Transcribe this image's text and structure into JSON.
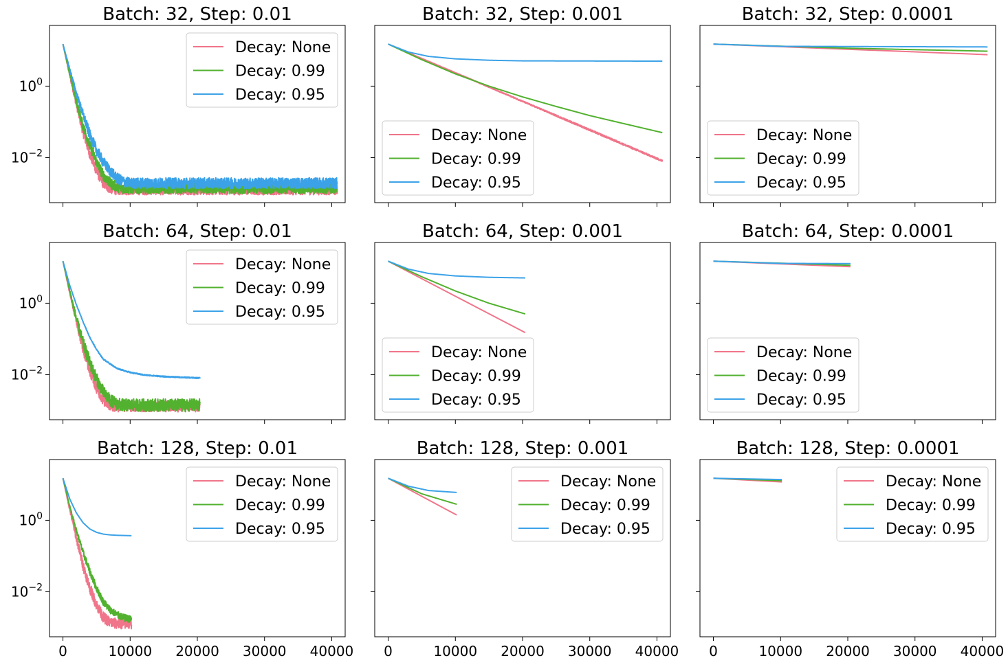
{
  "chart_data": {
    "type": "line",
    "layout": "3x3 grid, shared x-axis per column, shared y-axis per row",
    "yscale": "log",
    "xlim": [
      -2000,
      42000
    ],
    "ylim": [
      0.00055,
      50
    ],
    "xticks": [
      0,
      10000,
      20000,
      30000,
      40000
    ],
    "x_tick_labels": [
      "0",
      "10000",
      "20000",
      "30000",
      "40000"
    ],
    "y_tick_labels": [
      {
        "base": "10",
        "exp": "0",
        "value": 1
      },
      {
        "base": "10",
        "exp": "−2",
        "value": 0.01
      }
    ],
    "series_styles": [
      {
        "name": "Decay: None",
        "color": "#f0758a"
      },
      {
        "name": "Decay: 0.99",
        "color": "#52b12f"
      },
      {
        "name": "Decay: 0.95",
        "color": "#3ca2e8"
      }
    ],
    "panels": [
      {
        "title": "Batch: 32, Step: 0.01",
        "legend": "upper right",
        "series": [
          {
            "name": "Decay: None",
            "x": [
              0,
              1000,
              2000,
              3000,
              4000,
              5000,
              6000,
              7000,
              8000,
              40800
            ],
            "y": [
              15,
              2,
              0.3,
              0.05,
              0.012,
              0.004,
              0.0018,
              0.0013,
              0.0012,
              0.0012
            ],
            "noise": 0.3
          },
          {
            "name": "Decay: 0.99",
            "x": [
              0,
              1000,
              2000,
              3000,
              4000,
              5000,
              6000,
              7000,
              8000,
              9000,
              40800
            ],
            "y": [
              15,
              2.2,
              0.35,
              0.07,
              0.02,
              0.007,
              0.003,
              0.0018,
              0.0014,
              0.0013,
              0.0013
            ],
            "noise": 0.3
          },
          {
            "name": "Decay: 0.95",
            "x": [
              0,
              1000,
              2000,
              3000,
              4000,
              5000,
              6000,
              7000,
              8000,
              9000,
              10000,
              40800
            ],
            "y": [
              15,
              3,
              0.6,
              0.15,
              0.04,
              0.015,
              0.007,
              0.004,
              0.0025,
              0.002,
              0.0018,
              0.0018
            ],
            "noise": 0.3
          }
        ]
      },
      {
        "title": "Batch: 32, Step: 0.001",
        "legend": "lower left",
        "series": [
          {
            "name": "Decay: None",
            "x": [
              0,
              40800
            ],
            "y": [
              15,
              0.008
            ],
            "noise": 0.05
          },
          {
            "name": "Decay: 0.99",
            "x": [
              0,
              5000,
              10000,
              15000,
              20000,
              25000,
              30000,
              35000,
              40800
            ],
            "y": [
              15,
              5.5,
              2.2,
              1.0,
              0.5,
              0.27,
              0.15,
              0.09,
              0.05
            ],
            "noise": 0
          },
          {
            "name": "Decay: 0.95",
            "x": [
              0,
              3000,
              6000,
              10000,
              15000,
              20000,
              40800
            ],
            "y": [
              15,
              9,
              6.8,
              5.8,
              5.3,
              5.1,
              5.0
            ],
            "noise": 0
          }
        ]
      },
      {
        "title": "Batch: 32, Step: 0.0001",
        "legend": "lower left",
        "series": [
          {
            "name": "Decay: None",
            "x": [
              0,
              40800
            ],
            "y": [
              15,
              7.6
            ],
            "noise": 0
          },
          {
            "name": "Decay: 0.99",
            "x": [
              0,
              20000,
              40800
            ],
            "y": [
              15,
              11.5,
              9.5
            ],
            "noise": 0
          },
          {
            "name": "Decay: 0.95",
            "x": [
              0,
              10000,
              40800
            ],
            "y": [
              15,
              13,
              12.5
            ],
            "noise": 0
          }
        ]
      },
      {
        "title": "Batch: 64, Step: 0.01",
        "legend": "upper right",
        "series": [
          {
            "name": "Decay: None",
            "x": [
              0,
              1000,
              2000,
              3000,
              4000,
              5000,
              6000,
              7000,
              8000,
              20400
            ],
            "y": [
              15,
              2,
              0.3,
              0.05,
              0.012,
              0.004,
              0.0018,
              0.0013,
              0.0012,
              0.0012
            ],
            "noise": 0.3
          },
          {
            "name": "Decay: 0.99",
            "x": [
              0,
              1000,
              2000,
              3000,
              4000,
              5000,
              6000,
              7000,
              8000,
              9000,
              20400
            ],
            "y": [
              15,
              2.2,
              0.35,
              0.07,
              0.02,
              0.007,
              0.003,
              0.0018,
              0.0014,
              0.0013,
              0.0013
            ],
            "noise": 0.35
          },
          {
            "name": "Decay: 0.95",
            "x": [
              0,
              1000,
              2000,
              3000,
              4000,
              5000,
              6000,
              8000,
              10000,
              12000,
              15000,
              20400
            ],
            "y": [
              15,
              3.2,
              0.9,
              0.3,
              0.11,
              0.05,
              0.027,
              0.015,
              0.0115,
              0.0098,
              0.0088,
              0.008
            ],
            "noise": 0.03
          }
        ]
      },
      {
        "title": "Batch: 64, Step: 0.001",
        "legend": "lower left",
        "series": [
          {
            "name": "Decay: None",
            "x": [
              0,
              20400
            ],
            "y": [
              15,
              0.15
            ],
            "noise": 0
          },
          {
            "name": "Decay: 0.99",
            "x": [
              0,
              5000,
              10000,
              15000,
              20400
            ],
            "y": [
              15,
              5.5,
              2.2,
              1.0,
              0.5
            ],
            "noise": 0
          },
          {
            "name": "Decay: 0.95",
            "x": [
              0,
              3000,
              6000,
              10000,
              15000,
              20400
            ],
            "y": [
              15,
              9,
              6.8,
              5.8,
              5.3,
              5.1
            ],
            "noise": 0
          }
        ]
      },
      {
        "title": "Batch: 64, Step: 0.0001",
        "legend": "lower left",
        "series": [
          {
            "name": "Decay: None",
            "x": [
              0,
              20400
            ],
            "y": [
              15,
              10.5
            ],
            "noise": 0
          },
          {
            "name": "Decay: 0.99",
            "x": [
              0,
              20400
            ],
            "y": [
              15,
              11.5
            ],
            "noise": 0
          },
          {
            "name": "Decay: 0.95",
            "x": [
              0,
              10000,
              20400
            ],
            "y": [
              15,
              13,
              12.8
            ],
            "noise": 0
          }
        ]
      },
      {
        "title": "Batch: 128, Step: 0.01",
        "legend": "upper right",
        "series": [
          {
            "name": "Decay: None",
            "x": [
              0,
              1000,
              2000,
              3000,
              4000,
              5000,
              6000,
              7000,
              8000,
              10200
            ],
            "y": [
              15,
              2,
              0.3,
              0.05,
              0.012,
              0.004,
              0.0018,
              0.0013,
              0.0012,
              0.0012
            ],
            "noise": 0.3
          },
          {
            "name": "Decay: 0.99",
            "x": [
              0,
              1000,
              2000,
              3000,
              4000,
              5000,
              6000,
              7000,
              8000,
              9000,
              10200
            ],
            "y": [
              15,
              2.5,
              0.5,
              0.12,
              0.035,
              0.012,
              0.005,
              0.003,
              0.0022,
              0.0018,
              0.0016
            ],
            "noise": 0.2
          },
          {
            "name": "Decay: 0.95",
            "x": [
              0,
              1000,
              2000,
              3000,
              4000,
              5000,
              6000,
              7000,
              8000,
              10200
            ],
            "y": [
              15,
              4,
              1.6,
              0.85,
              0.57,
              0.46,
              0.41,
              0.39,
              0.38,
              0.37
            ],
            "noise": 0
          }
        ]
      },
      {
        "title": "Batch: 128, Step: 0.001",
        "legend": "upper right",
        "series": [
          {
            "name": "Decay: None",
            "x": [
              0,
              10200
            ],
            "y": [
              15,
              1.4
            ],
            "noise": 0
          },
          {
            "name": "Decay: 0.99",
            "x": [
              0,
              5000,
              10200
            ],
            "y": [
              15,
              5.5,
              2.8
            ],
            "noise": 0
          },
          {
            "name": "Decay: 0.95",
            "x": [
              0,
              3000,
              6000,
              10200
            ],
            "y": [
              15,
              9,
              6.8,
              6.0
            ],
            "noise": 0
          }
        ]
      },
      {
        "title": "Batch: 128, Step: 0.0001",
        "legend": "upper right",
        "series": [
          {
            "name": "Decay: None",
            "x": [
              0,
              10200
            ],
            "y": [
              15,
              11.8
            ],
            "noise": 0
          },
          {
            "name": "Decay: 0.99",
            "x": [
              0,
              10200
            ],
            "y": [
              15,
              12.8
            ],
            "noise": 0
          },
          {
            "name": "Decay: 0.95",
            "x": [
              0,
              10200
            ],
            "y": [
              15,
              13.8
            ],
            "noise": 0
          }
        ]
      }
    ]
  }
}
